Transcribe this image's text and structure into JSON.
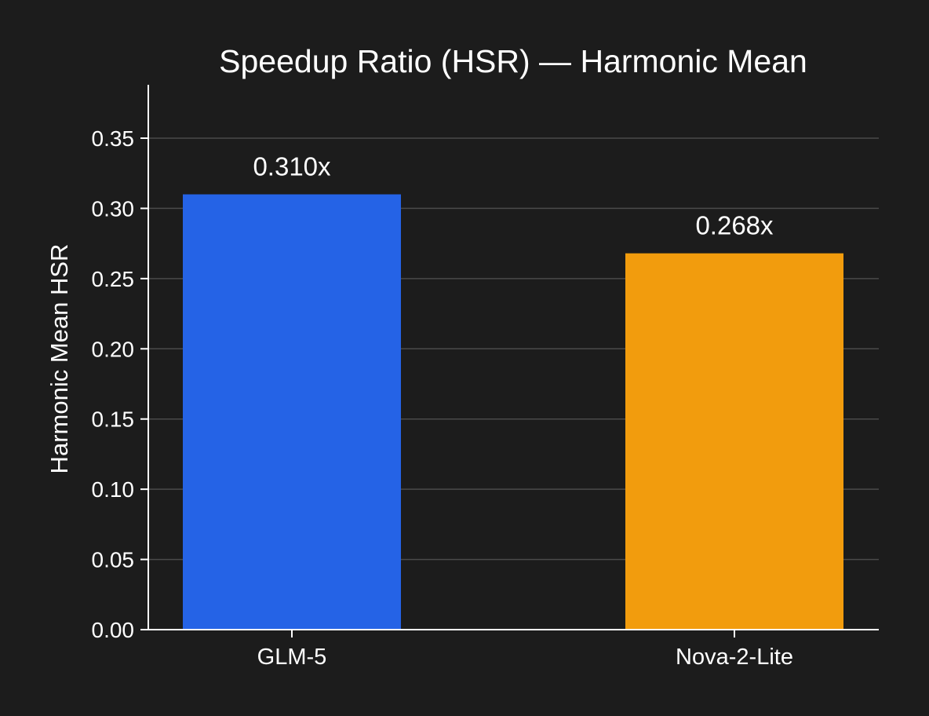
{
  "chart_data": {
    "type": "bar",
    "title": "Speedup Ratio (HSR) — Harmonic Mean",
    "xlabel": "",
    "ylabel": "Harmonic Mean HSR",
    "categories": [
      "GLM-5",
      "Nova-2-Lite"
    ],
    "values": [
      0.31,
      0.268
    ],
    "value_labels": [
      "0.310x",
      "0.268x"
    ],
    "colors": [
      "#2563e6",
      "#f29c0d"
    ],
    "ylim": [
      0,
      0.38
    ],
    "yticks": [
      0.0,
      0.05,
      0.1,
      0.15,
      0.2,
      0.25,
      0.3,
      0.35
    ],
    "ytick_labels": [
      "0.00",
      "0.05",
      "0.10",
      "0.15",
      "0.20",
      "0.25",
      "0.30",
      "0.35"
    ],
    "grid": true,
    "legend": "none"
  }
}
